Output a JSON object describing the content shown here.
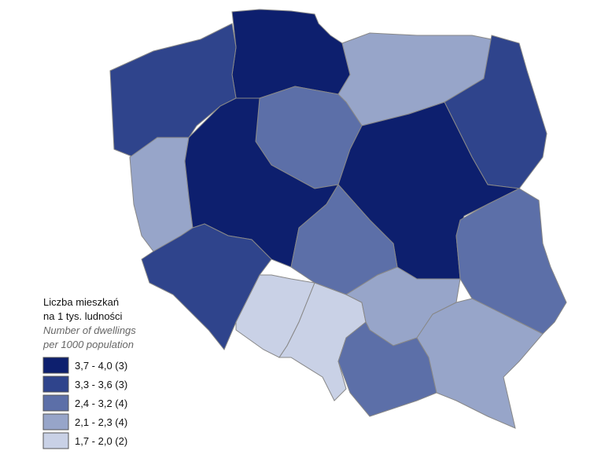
{
  "legend": {
    "title": [
      "Liczba mieszkań",
      "na 1 tys. ludności"
    ],
    "subtitle": [
      "Number of dwellings",
      "per 1000 population"
    ],
    "items": [
      {
        "label": "3,7 - 4,0 (3)",
        "color": "#0d1f6e"
      },
      {
        "label": "3,3 - 3,6 (3)",
        "color": "#2f448c"
      },
      {
        "label": "2,4 - 3,2 (4)",
        "color": "#5c6fa8"
      },
      {
        "label": "2,1 - 2,3 (4)",
        "color": "#97a5c9"
      },
      {
        "label": "1,7 - 2,0 (2)",
        "color": "#c9d1e6"
      }
    ]
  }
}
